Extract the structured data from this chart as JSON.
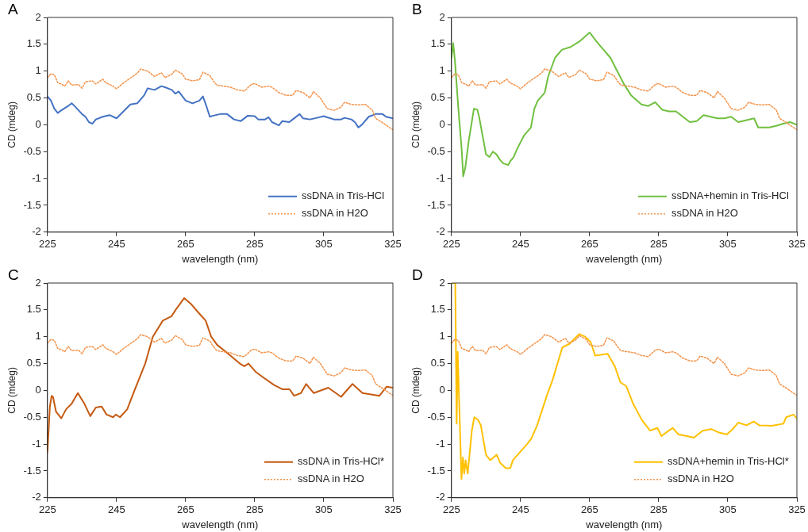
{
  "chart_data": [
    {
      "type": "line",
      "title": "A",
      "xlabel": "wavelength (nm)",
      "ylabel": "CD (mdeg)",
      "xlim": [
        225,
        325
      ],
      "xticks": [
        225,
        245,
        265,
        285,
        305,
        325
      ],
      "ylim": [
        -2,
        2
      ],
      "yticks": [
        -2,
        -1.5,
        -1,
        -0.5,
        0,
        0.5,
        1,
        1.5,
        2
      ],
      "grid": false,
      "legend": "bottom right",
      "marker": "none",
      "series": [
        {
          "name": "ssDNA in Tris-HCl",
          "color": "#4472c4",
          "line_style": "solid",
          "x": [
            225,
            226,
            227,
            228,
            229,
            231,
            232,
            233,
            235,
            236,
            237,
            238,
            239,
            241,
            243,
            245,
            247,
            249,
            251,
            253,
            254,
            256,
            258,
            259,
            261,
            262,
            263,
            265,
            267,
            269,
            270,
            271,
            272,
            273,
            275,
            277,
            279,
            281,
            283,
            285,
            286,
            288,
            289,
            290,
            292,
            293,
            295,
            296,
            298,
            299,
            301,
            303,
            305,
            306,
            308,
            310,
            311,
            313,
            314,
            315,
            316,
            318,
            320,
            322,
            323,
            325
          ],
          "values": [
            0.53,
            0.45,
            0.3,
            0.22,
            0.27,
            0.35,
            0.4,
            0.34,
            0.2,
            0.15,
            0.05,
            0.02,
            0.1,
            0.15,
            0.18,
            0.12,
            0.25,
            0.38,
            0.4,
            0.55,
            0.68,
            0.65,
            0.72,
            0.7,
            0.65,
            0.58,
            0.62,
            0.45,
            0.4,
            0.45,
            0.53,
            0.35,
            0.15,
            0.17,
            0.2,
            0.2,
            0.1,
            0.07,
            0.17,
            0.16,
            0.1,
            0.1,
            0.14,
            0.05,
            -0.01,
            0.07,
            0.05,
            0.1,
            0.2,
            0.12,
            0.1,
            0.13,
            0.16,
            0.14,
            0.1,
            0.1,
            0.13,
            0.1,
            0.05,
            -0.05,
            0,
            0.15,
            0.2,
            0.2,
            0.15,
            0.12
          ]
        },
        {
          "name": "ssDNA in H2O",
          "color": "#f4944c",
          "line_style": "dotted",
          "x": [
            225,
            226,
            227,
            228,
            229,
            230,
            231,
            232,
            234,
            235,
            236,
            238,
            239,
            241,
            242,
            244,
            245,
            247,
            249,
            251,
            252,
            254,
            256,
            258,
            259,
            261,
            262,
            264,
            265,
            267,
            269,
            270,
            272,
            273,
            274,
            276,
            278,
            280,
            282,
            284,
            285,
            287,
            289,
            290,
            292,
            294,
            296,
            297,
            299,
            301,
            302,
            304,
            306,
            308,
            310,
            311,
            313,
            315,
            317,
            319,
            320,
            322,
            324,
            325
          ],
          "values": [
            0.88,
            0.95,
            0.93,
            0.78,
            0.76,
            0.72,
            0.82,
            0.74,
            0.75,
            0.68,
            0.8,
            0.82,
            0.76,
            0.85,
            0.78,
            0.72,
            0.67,
            0.78,
            0.87,
            0.96,
            1.04,
            1.0,
            0.9,
            0.97,
            0.88,
            0.94,
            1.02,
            0.95,
            0.85,
            0.82,
            0.84,
            0.98,
            0.92,
            0.82,
            0.74,
            0.72,
            0.7,
            0.65,
            0.63,
            0.75,
            0.77,
            0.7,
            0.72,
            0.7,
            0.6,
            0.55,
            0.55,
            0.64,
            0.6,
            0.5,
            0.62,
            0.5,
            0.3,
            0.27,
            0.33,
            0.42,
            0.38,
            0.37,
            0.38,
            0.28,
            0.12,
            0.04,
            -0.05,
            -0.09
          ]
        }
      ]
    },
    {
      "type": "line",
      "title": "B",
      "xlabel": "wavelength (nm)",
      "ylabel": "CD (mdeg)",
      "xlim": [
        225,
        325
      ],
      "xticks": [
        225,
        245,
        265,
        285,
        305,
        325
      ],
      "ylim": [
        -2,
        2
      ],
      "yticks": [
        -2,
        -1.5,
        -1,
        -0.5,
        0,
        0.5,
        1,
        1.5,
        2
      ],
      "grid": false,
      "legend": "bottom right",
      "marker": "none",
      "series": [
        {
          "name": "ssDNA+hemin in Tris-HCl",
          "color": "#70c040",
          "line_style": "solid",
          "x": [
            225,
            225.5,
            226,
            227,
            228,
            228.4,
            229,
            230,
            231.5,
            232.5,
            233,
            234,
            235,
            236,
            237,
            238,
            239,
            240,
            241.4,
            242,
            243,
            244,
            246,
            248,
            249,
            250,
            252,
            253,
            255,
            257,
            259.5,
            262,
            265,
            267,
            269,
            271,
            273,
            275,
            277,
            280,
            282,
            284,
            286,
            288,
            290,
            292,
            294,
            296,
            298,
            300,
            302,
            304,
            306,
            308,
            310,
            312.6,
            313.8,
            315,
            317,
            319,
            321,
            323,
            325
          ],
          "values": [
            1.25,
            1.52,
            1.2,
            0.3,
            -0.5,
            -0.96,
            -0.8,
            -0.3,
            0.3,
            0.28,
            0.15,
            -0.2,
            -0.55,
            -0.6,
            -0.5,
            -0.55,
            -0.65,
            -0.72,
            -0.75,
            -0.68,
            -0.6,
            -0.45,
            -0.2,
            -0.05,
            0.3,
            0.45,
            0.6,
            0.9,
            1.25,
            1.4,
            1.45,
            1.55,
            1.72,
            1.55,
            1.4,
            1.25,
            1.0,
            0.75,
            0.55,
            0.38,
            0.35,
            0.42,
            0.28,
            0.25,
            0.25,
            0.15,
            0.05,
            0.07,
            0.18,
            0.15,
            0.12,
            0.12,
            0.15,
            0.05,
            0.08,
            0.12,
            -0.05,
            -0.05,
            -0.05,
            -0.02,
            0.02,
            0.05,
            0
          ]
        },
        {
          "name": "ssDNA in H2O",
          "color": "#f4944c",
          "line_style": "dotted",
          "x": [
            225,
            226,
            227,
            228,
            229,
            230,
            231,
            232,
            234,
            235,
            236,
            238,
            239,
            241,
            242,
            244,
            245,
            247,
            249,
            251,
            252,
            254,
            256,
            258,
            259,
            261,
            262,
            264,
            265,
            267,
            269,
            270,
            272,
            273,
            274,
            276,
            278,
            280,
            282,
            284,
            285,
            287,
            289,
            290,
            292,
            294,
            296,
            297,
            299,
            301,
            302,
            304,
            306,
            308,
            310,
            311,
            313,
            315,
            317,
            319,
            320,
            322,
            324,
            325
          ],
          "values": [
            0.88,
            0.95,
            0.93,
            0.78,
            0.76,
            0.72,
            0.82,
            0.74,
            0.75,
            0.68,
            0.8,
            0.82,
            0.76,
            0.85,
            0.78,
            0.72,
            0.67,
            0.78,
            0.87,
            0.96,
            1.04,
            1.0,
            0.9,
            0.97,
            0.88,
            0.94,
            1.02,
            0.95,
            0.85,
            0.82,
            0.84,
            0.98,
            0.92,
            0.82,
            0.74,
            0.72,
            0.7,
            0.65,
            0.63,
            0.75,
            0.77,
            0.7,
            0.72,
            0.7,
            0.6,
            0.55,
            0.55,
            0.64,
            0.6,
            0.5,
            0.62,
            0.5,
            0.3,
            0.27,
            0.33,
            0.42,
            0.38,
            0.37,
            0.38,
            0.28,
            0.12,
            0.04,
            -0.05,
            -0.09
          ]
        }
      ]
    },
    {
      "type": "line",
      "title": "C",
      "xlabel": "wavelength (nm)",
      "ylabel": "CD (mdeg)",
      "xlim": [
        225,
        325
      ],
      "xticks": [
        225,
        245,
        265,
        285,
        305,
        325
      ],
      "ylim": [
        -2,
        2
      ],
      "yticks": [
        -2,
        -1.5,
        -1,
        -0.5,
        0,
        0.5,
        1,
        1.5,
        2
      ],
      "grid": false,
      "legend": "bottom right",
      "marker": "none",
      "series": [
        {
          "name": "ssDNA in Tris-HCl*",
          "color": "#c55a11",
          "line_style": "solid",
          "x": [
            225,
            225.7,
            226.2,
            226.6,
            227.5,
            229,
            230.4,
            232,
            233.8,
            235.7,
            237.4,
            239,
            240.7,
            242.1,
            244,
            244.8,
            246,
            248.1,
            250.2,
            253.3,
            255.5,
            258.4,
            260.9,
            262.1,
            264.6,
            266.7,
            268.7,
            270.8,
            272.4,
            274.1,
            277,
            280.7,
            282,
            283.2,
            285.2,
            287.3,
            290.6,
            293.1,
            295.1,
            296.4,
            298.4,
            299.9,
            302.1,
            306.3,
            310,
            313.3,
            316.2,
            321.1,
            323.2,
            325
          ],
          "values": [
            -1.15,
            -0.3,
            -0.1,
            -0.12,
            -0.4,
            -0.52,
            -0.35,
            -0.25,
            -0.05,
            -0.25,
            -0.48,
            -0.32,
            -0.3,
            -0.45,
            -0.5,
            -0.45,
            -0.5,
            -0.35,
            0,
            0.5,
            1.0,
            1.3,
            1.38,
            1.5,
            1.72,
            1.6,
            1.45,
            1.3,
            1.0,
            0.85,
            0.7,
            0.5,
            0.45,
            0.5,
            0.35,
            0.25,
            0.1,
            0.02,
            0.02,
            -0.1,
            -0.05,
            0.12,
            -0.05,
            0.05,
            -0.12,
            0.12,
            -0.05,
            -0.1,
            0.07,
            0.05
          ]
        },
        {
          "name": "ssDNA in H2O",
          "color": "#f4944c",
          "line_style": "dotted",
          "x": [
            225,
            226,
            227,
            228,
            229,
            230,
            231,
            232,
            234,
            235,
            236,
            238,
            239,
            241,
            242,
            244,
            245,
            247,
            249,
            251,
            252,
            254,
            256,
            258,
            259,
            261,
            262,
            264,
            265,
            267,
            269,
            270,
            272,
            273,
            274,
            276,
            278,
            280,
            282,
            284,
            285,
            287,
            289,
            290,
            292,
            294,
            296,
            297,
            299,
            301,
            302,
            304,
            306,
            308,
            310,
            311,
            313,
            315,
            317,
            319,
            320,
            322,
            324,
            325
          ],
          "values": [
            0.88,
            0.95,
            0.93,
            0.78,
            0.76,
            0.72,
            0.82,
            0.74,
            0.75,
            0.68,
            0.8,
            0.82,
            0.76,
            0.85,
            0.78,
            0.72,
            0.67,
            0.78,
            0.87,
            0.96,
            1.04,
            1.0,
            0.9,
            0.97,
            0.88,
            0.94,
            1.02,
            0.95,
            0.85,
            0.82,
            0.84,
            0.98,
            0.92,
            0.82,
            0.74,
            0.72,
            0.7,
            0.65,
            0.63,
            0.75,
            0.77,
            0.7,
            0.72,
            0.7,
            0.6,
            0.55,
            0.55,
            0.64,
            0.6,
            0.5,
            0.62,
            0.5,
            0.3,
            0.27,
            0.33,
            0.42,
            0.38,
            0.37,
            0.38,
            0.28,
            0.12,
            0.04,
            -0.05,
            -0.09
          ]
        }
      ]
    },
    {
      "type": "line",
      "title": "D",
      "xlabel": "wavelength (nm)",
      "ylabel": "CD (mdeg)",
      "xlim": [
        225,
        325
      ],
      "xticks": [
        225,
        245,
        265,
        285,
        305,
        325
      ],
      "ylim": [
        -2,
        2
      ],
      "yticks": [
        -2,
        -1.5,
        -1,
        -0.5,
        0,
        0.5,
        1,
        1.5,
        2
      ],
      "grid": false,
      "legend": "bottom right",
      "marker": "none",
      "series": [
        {
          "name": "ssDNA+hemin in Tris-HCl*",
          "color": "#ffc000",
          "line_style": "solid",
          "x": [
            225.2,
            226.1,
            226.5,
            226.8,
            227.9,
            228.3,
            228.7,
            229.1,
            229.7,
            230.9,
            231.6,
            232.7,
            233.5,
            235,
            236.2,
            238.1,
            239.1,
            240.7,
            242,
            242.8,
            244.4,
            246.9,
            248.1,
            249.8,
            252.6,
            254.3,
            255.7,
            257.1,
            259.2,
            262,
            263.7,
            265.3,
            266.6,
            270.2,
            272.3,
            273.9,
            275.6,
            277.6,
            280.1,
            282.5,
            284.6,
            285.8,
            287.9,
            289.1,
            290.7,
            293.2,
            295.2,
            297.7,
            300.2,
            302.2,
            304.7,
            306.3,
            308,
            310.4,
            312.5,
            314.1,
            317.8,
            321.1,
            321.9,
            324,
            325
          ],
          "values": [
            2.0,
            2.0,
            -0.62,
            0.72,
            -1.65,
            -1.25,
            -1.55,
            -1.3,
            -1.55,
            -0.75,
            -0.5,
            -0.55,
            -0.65,
            -1.2,
            -1.3,
            -1.2,
            -1.35,
            -1.45,
            -1.45,
            -1.3,
            -1.18,
            -1.0,
            -0.9,
            -0.65,
            -0.1,
            0.2,
            0.5,
            0.8,
            0.87,
            1.05,
            1.0,
            0.9,
            0.65,
            0.68,
            0.45,
            0.15,
            0.08,
            -0.25,
            -0.55,
            -0.75,
            -0.7,
            -0.85,
            -0.75,
            -0.7,
            -0.82,
            -0.85,
            -0.88,
            -0.75,
            -0.72,
            -0.78,
            -0.82,
            -0.73,
            -0.6,
            -0.65,
            -0.58,
            -0.65,
            -0.66,
            -0.62,
            -0.5,
            -0.45,
            -0.52
          ]
        },
        {
          "name": "ssDNA in H2O",
          "color": "#f4944c",
          "line_style": "dotted",
          "x": [
            225,
            226,
            227,
            228,
            229,
            230,
            231,
            232,
            234,
            235,
            236,
            238,
            239,
            241,
            242,
            244,
            245,
            247,
            249,
            251,
            252,
            254,
            256,
            258,
            259,
            261,
            262,
            264,
            265,
            267,
            269,
            270,
            272,
            273,
            274,
            276,
            278,
            280,
            282,
            284,
            285,
            287,
            289,
            290,
            292,
            294,
            296,
            297,
            299,
            301,
            302,
            304,
            306,
            308,
            310,
            311,
            313,
            315,
            317,
            319,
            320,
            322,
            324,
            325
          ],
          "values": [
            0.88,
            0.95,
            0.93,
            0.78,
            0.76,
            0.72,
            0.82,
            0.74,
            0.75,
            0.68,
            0.8,
            0.82,
            0.76,
            0.85,
            0.78,
            0.72,
            0.67,
            0.78,
            0.87,
            0.96,
            1.04,
            1.0,
            0.9,
            0.97,
            0.88,
            0.94,
            1.02,
            0.95,
            0.85,
            0.82,
            0.84,
            0.98,
            0.92,
            0.82,
            0.74,
            0.72,
            0.7,
            0.65,
            0.63,
            0.75,
            0.77,
            0.7,
            0.72,
            0.7,
            0.6,
            0.55,
            0.55,
            0.64,
            0.6,
            0.5,
            0.62,
            0.5,
            0.3,
            0.27,
            0.33,
            0.42,
            0.38,
            0.37,
            0.38,
            0.28,
            0.12,
            0.04,
            -0.05,
            -0.09
          ]
        }
      ]
    }
  ]
}
